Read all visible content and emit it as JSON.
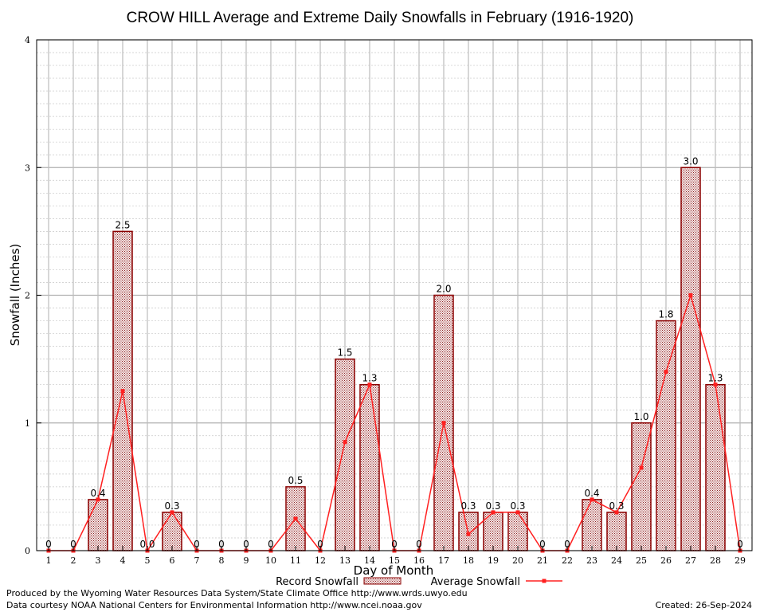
{
  "chart_data": {
    "type": "bar",
    "title": "CROW HILL Average and Extreme Daily Snowfalls in February (1916-1920)",
    "xlabel": "Day of Month",
    "ylabel": "Snowfall (Inches)",
    "ylim": [
      0,
      4
    ],
    "yticks": [
      "0",
      "1",
      "2",
      "3",
      "4"
    ],
    "grid": true,
    "categories": [
      "1",
      "2",
      "3",
      "4",
      "5",
      "6",
      "7",
      "8",
      "9",
      "10",
      "11",
      "12",
      "13",
      "14",
      "15",
      "16",
      "17",
      "18",
      "19",
      "20",
      "21",
      "22",
      "23",
      "24",
      "25",
      "26",
      "27",
      "28",
      "29"
    ],
    "series": [
      {
        "name": "Record Snowfall",
        "kind": "bar",
        "values": [
          0,
          0,
          0.4,
          2.5,
          0,
          0.3,
          0,
          0,
          0,
          0,
          0.5,
          0,
          1.5,
          1.3,
          0,
          0,
          2.0,
          0.3,
          0.3,
          0.3,
          0,
          0,
          0.4,
          0.3,
          1.0,
          1.8,
          3.0,
          1.3,
          0
        ],
        "labels": [
          "0",
          "0",
          "0.4",
          "2.5",
          "0.0",
          "0.3",
          "0",
          "0",
          "0",
          "0",
          "0.5",
          "0",
          "1.5",
          "1.3",
          "0",
          "0",
          "2.0",
          "0.3",
          "0.3",
          "0.3",
          "0",
          "0",
          "0.4",
          "0.3",
          "1.0",
          "1.8",
          "3.0",
          "1.3",
          "0"
        ]
      },
      {
        "name": "Average Snowfall",
        "kind": "line",
        "values": [
          0,
          0,
          0.4,
          1.25,
          0,
          0.3,
          0,
          0,
          0,
          0,
          0.25,
          0,
          0.85,
          1.3,
          0,
          0,
          1.0,
          0.13,
          0.3,
          0.3,
          0,
          0,
          0.4,
          0.3,
          0.65,
          1.4,
          2.0,
          1.3,
          0
        ]
      }
    ],
    "legend_position": "bottom",
    "colors": {
      "bar_fill": "#c9a8a8",
      "bar_edge": "#8b0000",
      "line": "#ff2020",
      "grid": "#c0c0c0"
    }
  },
  "footer": {
    "produced_by": "Produced by the Wyoming Water Resources Data System/State Climate Office http://www.wrds.uwyo.edu",
    "courtesy": "Data courtesy NOAA National Centers for Environmental Information http://www.ncei.noaa.gov",
    "created": "Created:  26-Sep-2024"
  }
}
